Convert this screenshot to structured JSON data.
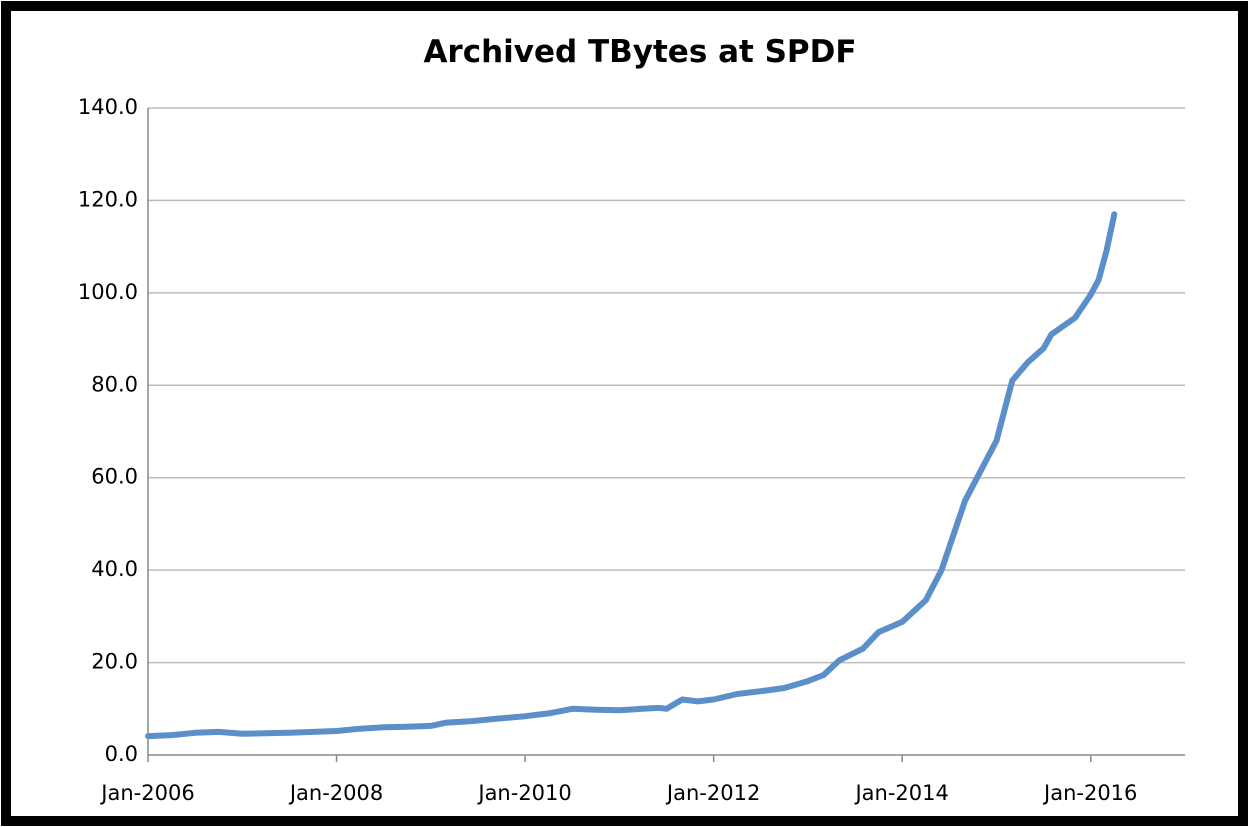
{
  "chart_data": {
    "type": "line",
    "title": "Archived TBytes at SPDF",
    "x": [
      "2006-01",
      "2006-04",
      "2006-07",
      "2006-10",
      "2007-01",
      "2007-04",
      "2007-07",
      "2007-10",
      "2008-01",
      "2008-04",
      "2008-07",
      "2008-10",
      "2009-01",
      "2009-03",
      "2009-06",
      "2009-09",
      "2010-01",
      "2010-04",
      "2010-07",
      "2010-10",
      "2011-01",
      "2011-04",
      "2011-06",
      "2011-07",
      "2011-09",
      "2011-11",
      "2012-01",
      "2012-04",
      "2012-07",
      "2012-10",
      "2013-01",
      "2013-03",
      "2013-05",
      "2013-08",
      "2013-10",
      "2014-01",
      "2014-04",
      "2014-06",
      "2014-09",
      "2015-01",
      "2015-03",
      "2015-05",
      "2015-07",
      "2015-08",
      "2015-11",
      "2016-01",
      "2016-02",
      "2016-03",
      "2016-04"
    ],
    "series": [
      {
        "name": "Archived TBytes",
        "color": "#5b8fca",
        "values": [
          4.1,
          4.3,
          4.8,
          5.0,
          4.6,
          4.7,
          4.8,
          5.0,
          5.2,
          5.7,
          6.0,
          6.1,
          6.3,
          7.0,
          7.3,
          7.8,
          8.4,
          9.0,
          10.0,
          9.8,
          9.7,
          10.0,
          10.2,
          10.0,
          12.0,
          11.6,
          12.0,
          13.2,
          13.8,
          14.5,
          16.0,
          17.3,
          20.5,
          23.0,
          26.6,
          28.8,
          33.5,
          40.0,
          55.0,
          68.0,
          81.0,
          85.0,
          88.0,
          91.0,
          94.6,
          99.6,
          102.8,
          109.0,
          117.0
        ]
      }
    ],
    "xlim": [
      "2006-01",
      "2017-01"
    ],
    "xticks": [
      {
        "value": "2006-01",
        "label": "Jan-2006"
      },
      {
        "value": "2008-01",
        "label": "Jan-2008"
      },
      {
        "value": "2010-01",
        "label": "Jan-2010"
      },
      {
        "value": "2012-01",
        "label": "Jan-2012"
      },
      {
        "value": "2014-01",
        "label": "Jan-2014"
      },
      {
        "value": "2016-01",
        "label": "Jan-2016"
      }
    ],
    "ylim": [
      0,
      140
    ],
    "yticks": [
      {
        "value": 0,
        "label": "0.0"
      },
      {
        "value": 20,
        "label": "20.0"
      },
      {
        "value": 40,
        "label": "40.0"
      },
      {
        "value": 60,
        "label": "60.0"
      },
      {
        "value": 80,
        "label": "80.0"
      },
      {
        "value": 100,
        "label": "100.0"
      },
      {
        "value": 120,
        "label": "120.0"
      },
      {
        "value": 140,
        "label": "140.0"
      }
    ],
    "grid": true
  }
}
